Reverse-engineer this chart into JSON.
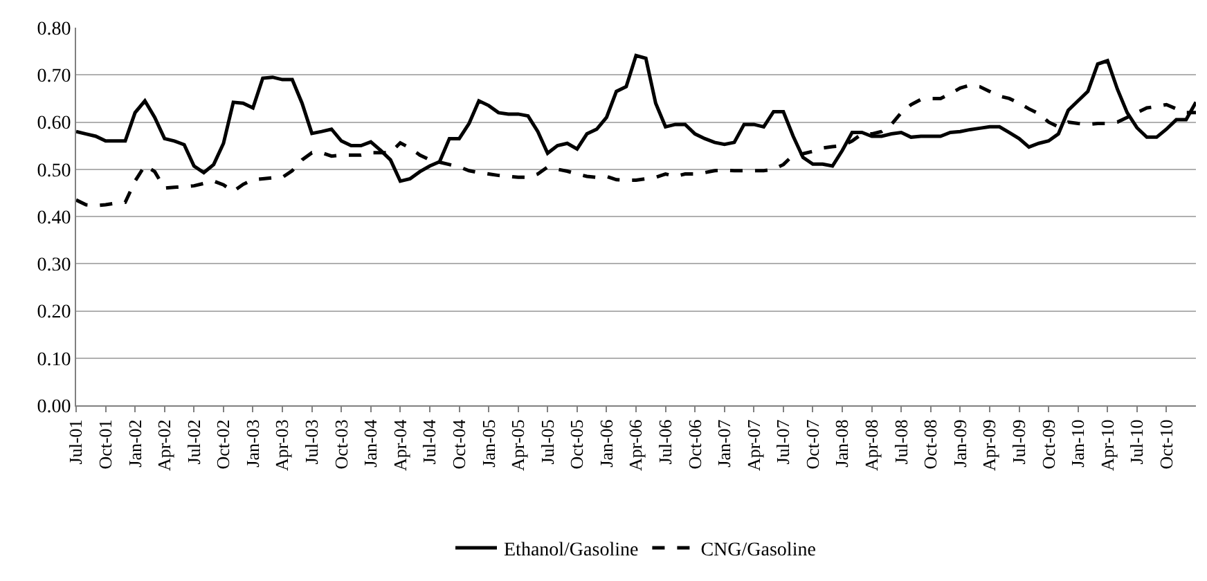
{
  "chart_data": {
    "type": "line",
    "categories": [
      "Jul-01",
      null,
      null,
      "Oct-01",
      null,
      null,
      "Jan-02",
      null,
      null,
      "Apr-02",
      null,
      null,
      "Jul-02",
      null,
      null,
      "Oct-02",
      null,
      null,
      "Jan-03",
      null,
      null,
      "Apr-03",
      null,
      null,
      "Jul-03",
      null,
      null,
      "Oct-03",
      null,
      null,
      "Jan-04",
      null,
      null,
      "Apr-04",
      null,
      null,
      "Jul-04",
      null,
      null,
      "Oct-04",
      null,
      null,
      "Jan-05",
      null,
      null,
      "Apr-05",
      null,
      null,
      "Jul-05",
      null,
      null,
      "Oct-05",
      null,
      null,
      "Jan-06",
      null,
      null,
      "Apr-06",
      null,
      null,
      "Jul-06",
      null,
      null,
      "Oct-06",
      null,
      null,
      "Jan-07",
      null,
      null,
      "Apr-07",
      null,
      null,
      "Jul-07",
      null,
      null,
      "Oct-07",
      null,
      null,
      "Jan-08",
      null,
      null,
      "Apr-08",
      null,
      null,
      "Jul-08",
      null,
      null,
      "Oct-08",
      null,
      null,
      "Jan-09",
      null,
      null,
      "Apr-09",
      null,
      null,
      "Jul-09",
      null,
      null,
      "Oct-09",
      null,
      null,
      "Jan-10",
      null,
      null,
      "Apr-10",
      null,
      null,
      "Jul-10",
      null,
      null,
      "Oct-10",
      null,
      null,
      null
    ],
    "series": [
      {
        "name": "Ethanol/Gasoline",
        "color": "#000000",
        "line_style": "solid",
        "values": [
          0.58,
          0.575,
          0.57,
          0.56,
          0.56,
          0.56,
          0.62,
          0.645,
          0.61,
          0.565,
          0.56,
          0.552,
          0.507,
          0.493,
          0.51,
          0.555,
          0.642,
          0.64,
          0.63,
          0.693,
          0.695,
          0.69,
          0.69,
          0.64,
          0.576,
          0.58,
          0.585,
          0.56,
          0.55,
          0.55,
          0.558,
          0.54,
          0.52,
          0.475,
          0.48,
          0.495,
          0.507,
          0.516,
          0.565,
          0.565,
          0.597,
          0.645,
          0.635,
          0.62,
          0.617,
          0.617,
          0.613,
          0.58,
          0.534,
          0.55,
          0.555,
          0.543,
          0.575,
          0.585,
          0.61,
          0.665,
          0.675,
          0.741,
          0.735,
          0.64,
          0.59,
          0.595,
          0.595,
          0.575,
          0.565,
          0.557,
          0.553,
          0.557,
          0.595,
          0.595,
          0.59,
          0.622,
          0.622,
          0.57,
          0.525,
          0.511,
          0.511,
          0.507,
          0.54,
          0.578,
          0.578,
          0.57,
          0.57,
          0.575,
          0.578,
          0.568,
          0.57,
          0.57,
          0.57,
          0.578,
          0.58,
          0.584,
          0.587,
          0.59,
          0.59,
          0.578,
          0.565,
          0.547,
          0.555,
          0.56,
          0.575,
          0.625,
          0.645,
          0.665,
          0.723,
          0.73,
          0.67,
          0.62,
          0.588,
          0.568,
          0.568,
          0.585,
          0.605,
          0.605,
          0.642
        ]
      },
      {
        "name": "CNG/Gasoline",
        "color": "#000000",
        "line_style": "dashed",
        "values": [
          0.435,
          0.425,
          0.423,
          0.425,
          0.428,
          0.43,
          0.475,
          0.508,
          0.495,
          0.46,
          0.462,
          0.463,
          0.465,
          0.47,
          0.475,
          0.467,
          0.453,
          0.468,
          0.478,
          0.48,
          0.482,
          0.483,
          0.497,
          0.52,
          0.535,
          0.535,
          0.528,
          0.53,
          0.53,
          0.53,
          0.535,
          0.535,
          0.535,
          0.556,
          0.545,
          0.53,
          0.52,
          0.515,
          0.51,
          0.505,
          0.497,
          0.493,
          0.49,
          0.487,
          0.485,
          0.483,
          0.483,
          0.49,
          0.505,
          0.5,
          0.496,
          0.49,
          0.485,
          0.483,
          0.485,
          0.478,
          0.477,
          0.477,
          0.48,
          0.483,
          0.49,
          0.485,
          0.49,
          0.49,
          0.493,
          0.497,
          0.498,
          0.497,
          0.497,
          0.497,
          0.497,
          0.5,
          0.51,
          0.53,
          0.533,
          0.538,
          0.545,
          0.548,
          0.55,
          0.56,
          0.575,
          0.575,
          0.58,
          0.595,
          0.62,
          0.637,
          0.648,
          0.65,
          0.65,
          0.66,
          0.672,
          0.678,
          0.675,
          0.665,
          0.655,
          0.65,
          0.64,
          0.628,
          0.618,
          0.6,
          0.59,
          0.6,
          0.597,
          0.595,
          0.597,
          0.597,
          0.6,
          0.61,
          0.62,
          0.63,
          0.633,
          0.637,
          0.628,
          0.62,
          0.62
        ]
      }
    ],
    "ylim": [
      0,
      0.8
    ],
    "yticks": [
      {
        "value": 0,
        "label": "0.00"
      },
      {
        "value": 0.1,
        "label": "0.10"
      },
      {
        "value": 0.2,
        "label": "0.20"
      },
      {
        "value": 0.3,
        "label": "0.30"
      },
      {
        "value": 0.4,
        "label": "0.40"
      },
      {
        "value": 0.5,
        "label": "0.50"
      },
      {
        "value": 0.6,
        "label": "0.60"
      },
      {
        "value": 0.7,
        "label": "0.70"
      },
      {
        "value": 0.8,
        "label": "0.80"
      }
    ],
    "grid": "y",
    "legend": "bottom",
    "marker": "none"
  }
}
